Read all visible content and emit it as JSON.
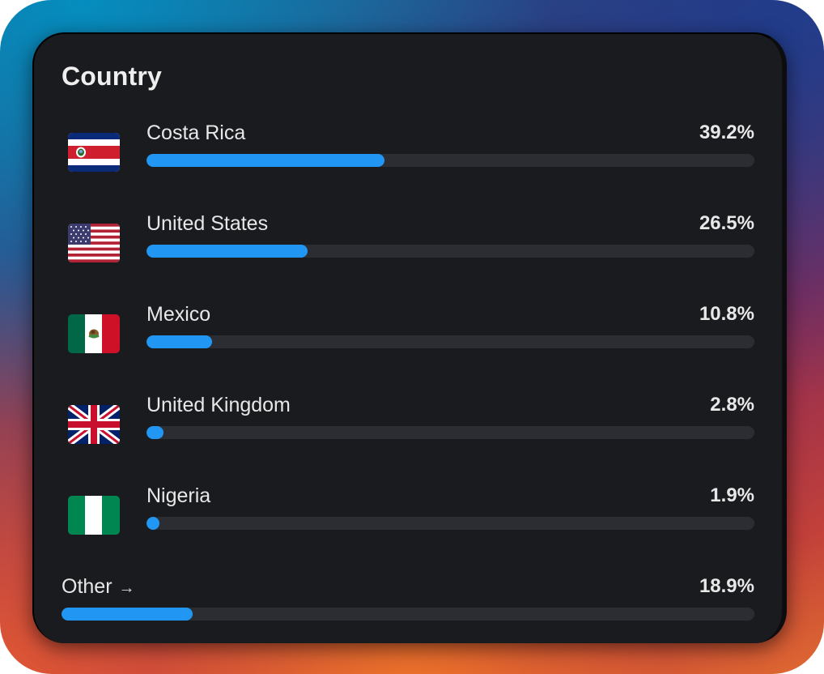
{
  "card": {
    "title": "Country"
  },
  "countries": [
    {
      "name": "Costa Rica",
      "percent_label": "39.2%",
      "percent": 39.2,
      "flag_icon": "costa-rica-flag-icon"
    },
    {
      "name": "United States",
      "percent_label": "26.5%",
      "percent": 26.5,
      "flag_icon": "united-states-flag-icon"
    },
    {
      "name": "Mexico",
      "percent_label": "10.8%",
      "percent": 10.8,
      "flag_icon": "mexico-flag-icon"
    },
    {
      "name": "United Kingdom",
      "percent_label": "2.8%",
      "percent": 2.8,
      "flag_icon": "united-kingdom-flag-icon"
    },
    {
      "name": "Nigeria",
      "percent_label": "1.9%",
      "percent": 1.9,
      "flag_icon": "nigeria-flag-icon"
    }
  ],
  "other": {
    "label": "Other",
    "arrow": "→",
    "arrow_icon": "arrow-right-icon",
    "percent_label": "18.9%",
    "percent": 18.9
  },
  "colors": {
    "card_background": "#1a1b1f",
    "bar_fill": "#2196f3",
    "bar_track": "#2c2d32",
    "text": "#e8e8e8"
  }
}
